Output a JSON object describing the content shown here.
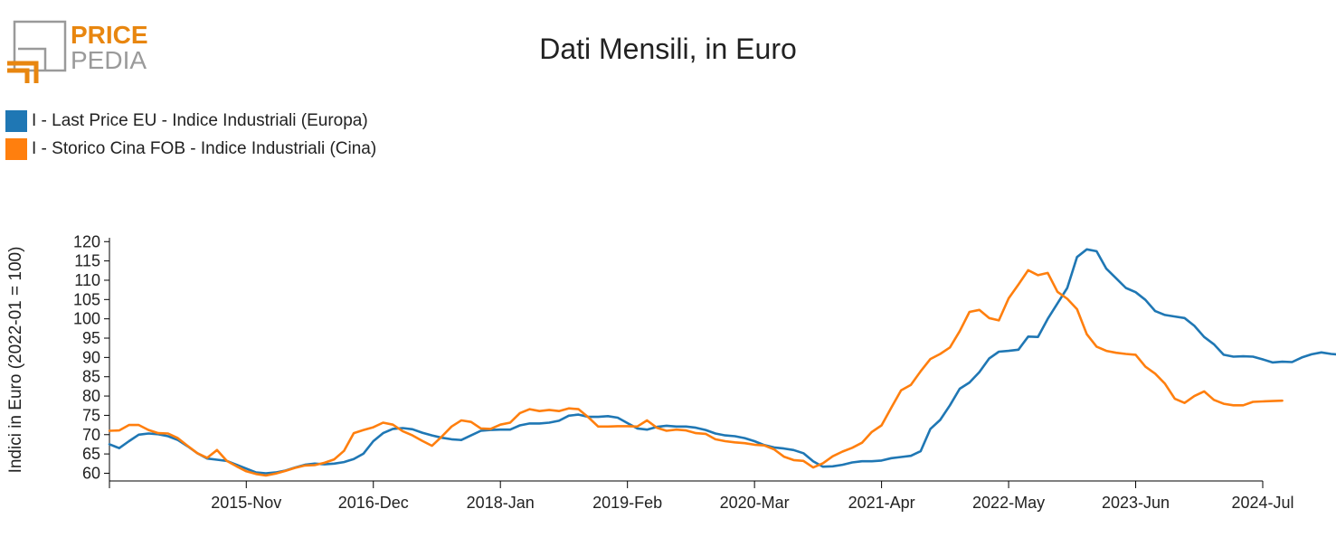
{
  "logo": {
    "line1": "PRICE",
    "line2": "PEDIA",
    "accent": "#E8860F",
    "gray": "#9a9a9a"
  },
  "chart_data": {
    "type": "line",
    "title": "Dati Mensili, in Euro",
    "ylabel": "Indici in Euro (2022-01 = 100)",
    "xlabel": "",
    "ylim": [
      58,
      121
    ],
    "yticks": [
      60,
      65,
      70,
      75,
      80,
      85,
      90,
      95,
      100,
      105,
      110,
      115,
      120
    ],
    "x_ticks": [
      "2015-Nov",
      "2016-Dec",
      "2018-Jan",
      "2019-Feb",
      "2020-Mar",
      "2021-Apr",
      "2022-May",
      "2023-Jun",
      "2024-Jul"
    ],
    "x_start": "2014-Sep",
    "x_end": "2024-Jul",
    "legend_position": "top-left",
    "grid": false,
    "series": [
      {
        "name": "I - Last Price EU - Indice Industriali (Europa)",
        "color": "#1F77B4",
        "start": "2014-Sep",
        "values": [
          67.5,
          66.5,
          68.3,
          70.0,
          70.3,
          70.1,
          69.6,
          68.6,
          67.0,
          65.2,
          63.8,
          63.5,
          63.2,
          62.2,
          61.2,
          60.2,
          60.0,
          60.2,
          60.7,
          61.5,
          62.2,
          62.5,
          62.3,
          62.5,
          62.9,
          63.7,
          65.1,
          68.3,
          70.4,
          71.5,
          71.7,
          71.4,
          70.5,
          69.8,
          69.2,
          68.8,
          68.6,
          69.8,
          71.0,
          71.2,
          71.3,
          71.3,
          72.4,
          72.9,
          72.9,
          73.1,
          73.6,
          74.9,
          75.2,
          74.6,
          74.6,
          74.8,
          74.4,
          73.0,
          71.6,
          71.3,
          72.0,
          72.3,
          72.1,
          72.1,
          71.8,
          71.2,
          70.3,
          69.8,
          69.6,
          69.1,
          68.3,
          67.3,
          66.7,
          66.4,
          66.0,
          65.2,
          63.1,
          61.7,
          61.8,
          62.2,
          62.8,
          63.1,
          63.1,
          63.3,
          63.9,
          64.2,
          64.5,
          65.7,
          71.5,
          73.8,
          77.6,
          81.9,
          83.5,
          86.2,
          89.7,
          91.5,
          91.7,
          92.0,
          95.4,
          95.3,
          100.0,
          104.0,
          108.0,
          116.0,
          118.0,
          117.5,
          113.0,
          110.5,
          108.0,
          106.9,
          104.9,
          102.0,
          101.0,
          100.6,
          100.2,
          98.2,
          95.3,
          93.4,
          90.7,
          90.2,
          90.3,
          90.2,
          89.5,
          88.7,
          88.9,
          88.8,
          90.0,
          90.8,
          91.3,
          90.9,
          90.7
        ]
      },
      {
        "name": "I - Storico Cina FOB - Indice Industriali (Cina)",
        "color": "#FF7F0E",
        "start": "2014-Sep",
        "values": [
          71.0,
          71.1,
          72.5,
          72.5,
          71.2,
          70.4,
          70.3,
          69.1,
          67.1,
          65.2,
          64.0,
          66.0,
          63.2,
          61.8,
          60.5,
          59.8,
          59.4,
          59.9,
          60.6,
          61.4,
          62.0,
          62.1,
          62.7,
          63.6,
          65.8,
          70.4,
          71.2,
          71.9,
          73.1,
          72.6,
          70.9,
          69.8,
          68.4,
          67.1,
          69.5,
          72.1,
          73.7,
          73.3,
          71.6,
          71.5,
          72.6,
          73.1,
          75.6,
          76.6,
          76.1,
          76.4,
          76.1,
          76.8,
          76.6,
          74.5,
          72.1,
          72.1,
          72.2,
          72.2,
          72.1,
          73.7,
          71.8,
          71.0,
          71.3,
          71.1,
          70.4,
          70.2,
          68.8,
          68.3,
          68.0,
          67.8,
          67.4,
          67.2,
          66.2,
          64.3,
          63.4,
          63.2,
          61.5,
          62.6,
          64.4,
          65.6,
          66.6,
          67.9,
          70.7,
          72.4,
          77.0,
          81.5,
          82.9,
          86.4,
          89.6,
          90.9,
          92.6,
          96.8,
          101.8,
          102.3,
          100.2,
          99.6,
          105.3,
          108.9,
          112.6,
          111.3,
          111.9,
          107.0,
          105.2,
          102.5,
          96.0,
          92.8,
          91.7,
          91.2,
          90.9,
          90.7,
          87.6,
          85.8,
          83.2,
          79.3,
          78.2,
          80.0,
          81.2,
          79.0,
          78.0,
          77.6,
          77.6,
          78.5,
          78.6,
          78.7,
          78.8
        ]
      }
    ]
  }
}
